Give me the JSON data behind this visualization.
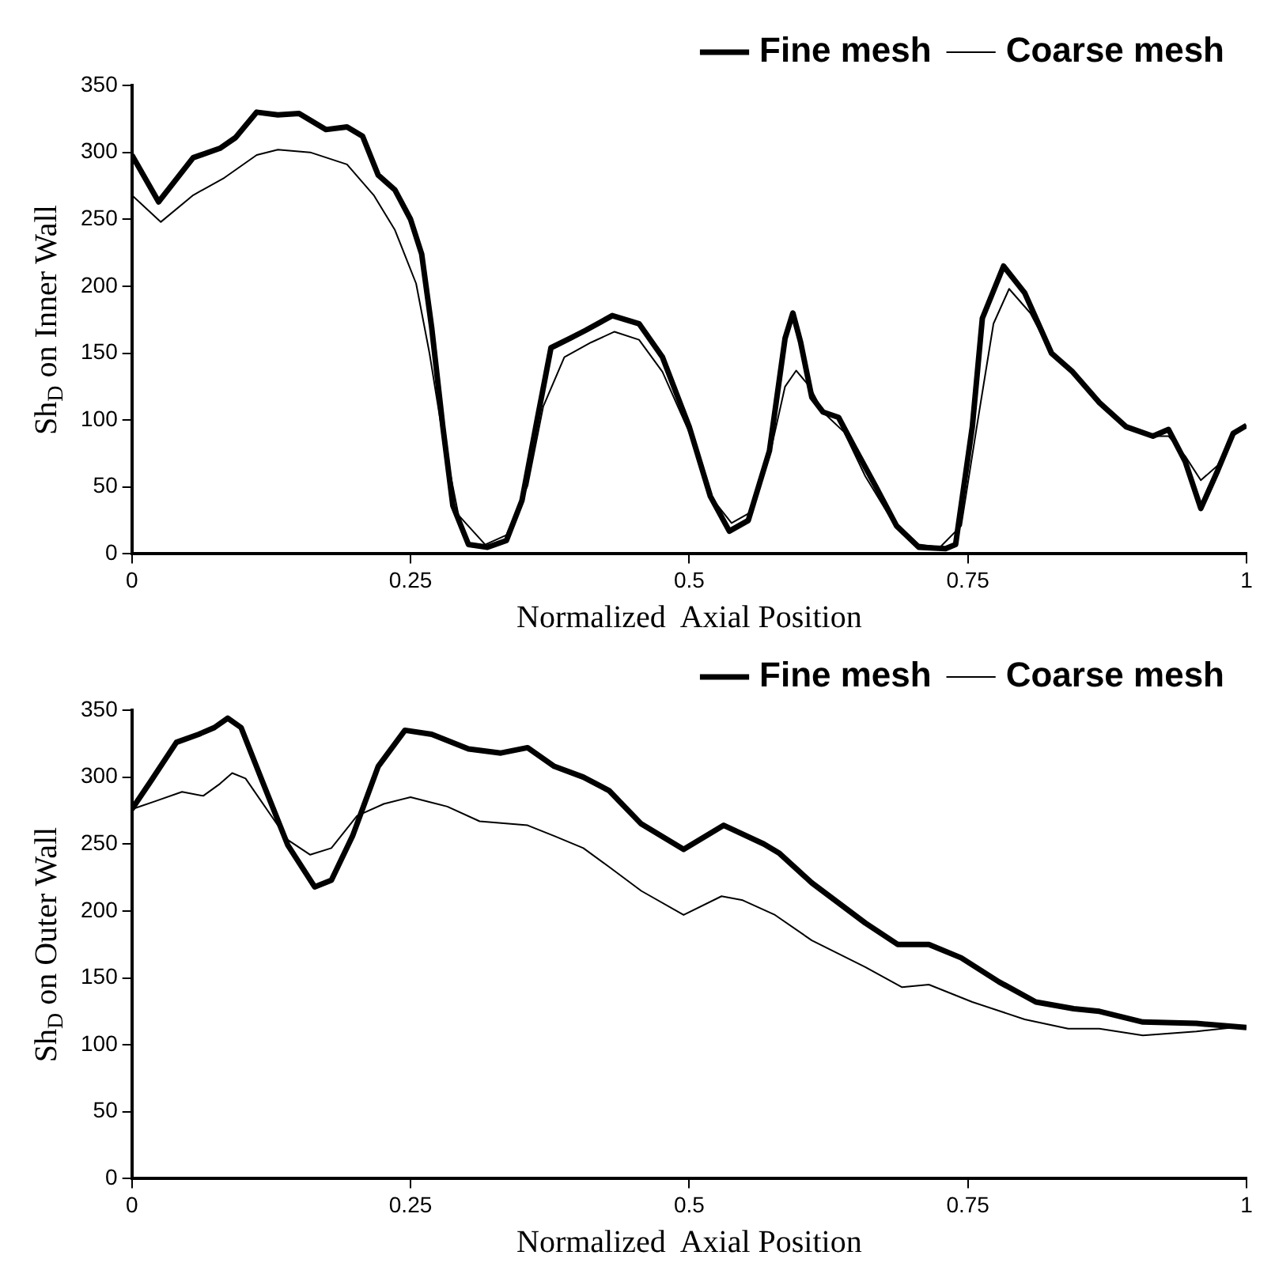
{
  "chart_data": [
    {
      "type": "line",
      "xlabel": "Normalized  Axial Position",
      "ylabel": "Sh$_{D}$ on Inner Wall",
      "xlim": [
        0,
        1
      ],
      "xticks": [
        0,
        0.25,
        0.5,
        0.75,
        1
      ],
      "ylim": [
        0,
        350
      ],
      "yticks": [
        0,
        50,
        100,
        150,
        200,
        250,
        300,
        350
      ],
      "grid": false,
      "legend": "top right",
      "marker": "none",
      "series": [
        {
          "name": "Fine mesh",
          "color": "#000000",
          "x": [
            0,
            0.024,
            0.055,
            0.079,
            0.093,
            0.112,
            0.131,
            0.15,
            0.174,
            0.193,
            0.207,
            0.221,
            0.236,
            0.25,
            0.26,
            0.269,
            0.279,
            0.288,
            0.302,
            0.319,
            0.336,
            0.35,
            0.364,
            0.376,
            0.393,
            0.407,
            0.431,
            0.455,
            0.476,
            0.5,
            0.519,
            0.536,
            0.553,
            0.572,
            0.586,
            0.593,
            0.6,
            0.61,
            0.62,
            0.634,
            0.648,
            0.667,
            0.686,
            0.706,
            0.73,
            0.739,
            0.754,
            0.763,
            0.782,
            0.801,
            0.825,
            0.844,
            0.868,
            0.892,
            0.916,
            0.93,
            0.945,
            0.959,
            0.974,
            0.988,
            1
          ],
          "values": [
            298,
            263,
            296,
            303,
            311,
            330,
            328,
            329,
            317,
            319,
            312,
            283,
            272,
            250,
            224,
            169,
            95,
            36,
            7,
            5,
            10,
            40,
            102,
            154,
            161,
            167,
            178,
            172,
            147,
            95,
            43,
            17,
            25,
            77,
            161,
            180,
            158,
            117,
            106,
            102,
            80,
            51,
            21,
            5,
            4,
            7,
            95,
            176,
            215,
            195,
            150,
            136,
            113,
            95,
            88,
            93,
            69,
            34,
            62,
            90,
            96
          ]
        },
        {
          "name": "Coarse mesh",
          "color": "#000000",
          "x": [
            0,
            0.026,
            0.055,
            0.083,
            0.112,
            0.131,
            0.16,
            0.193,
            0.217,
            0.236,
            0.255,
            0.267,
            0.279,
            0.293,
            0.317,
            0.336,
            0.355,
            0.369,
            0.388,
            0.412,
            0.433,
            0.455,
            0.476,
            0.5,
            0.519,
            0.538,
            0.555,
            0.572,
            0.586,
            0.596,
            0.608,
            0.62,
            0.639,
            0.658,
            0.682,
            0.706,
            0.725,
            0.744,
            0.758,
            0.773,
            0.787,
            0.806,
            0.825,
            0.844,
            0.868,
            0.892,
            0.916,
            0.93,
            0.945,
            0.959,
            0.974,
            0.988,
            1
          ],
          "values": [
            268,
            248,
            268,
            281,
            298,
            302,
            300,
            291,
            268,
            242,
            202,
            150,
            88,
            29,
            7,
            14,
            51,
            110,
            147,
            158,
            166,
            160,
            136,
            91,
            43,
            23,
            31,
            73,
            125,
            137,
            125,
            106,
            91,
            58,
            25,
            7,
            5,
            21,
            95,
            172,
            198,
            180,
            150,
            136,
            113,
            95,
            88,
            88,
            73,
            55,
            66,
            90,
            96
          ]
        }
      ]
    },
    {
      "type": "line",
      "xlabel": "Normalized  Axial Position",
      "ylabel": "Sh$_{D}$ on Outer Wall",
      "xlim": [
        0,
        1
      ],
      "xticks": [
        0,
        0.25,
        0.5,
        0.75,
        1
      ],
      "ylim": [
        0,
        350
      ],
      "yticks": [
        0,
        50,
        100,
        150,
        200,
        250,
        300,
        350
      ],
      "grid": false,
      "legend": "top right",
      "marker": "none",
      "series": [
        {
          "name": "Fine mesh",
          "color": "#000000",
          "x": [
            0,
            0.017,
            0.04,
            0.06,
            0.074,
            0.086,
            0.098,
            0.117,
            0.14,
            0.164,
            0.179,
            0.198,
            0.221,
            0.245,
            0.269,
            0.302,
            0.331,
            0.355,
            0.379,
            0.405,
            0.428,
            0.457,
            0.495,
            0.531,
            0.567,
            0.581,
            0.61,
            0.658,
            0.687,
            0.715,
            0.744,
            0.778,
            0.811,
            0.845,
            0.868,
            0.907,
            0.955,
            1
          ],
          "values": [
            276,
            297,
            326,
            332,
            337,
            344,
            337,
            297,
            249,
            218,
            223,
            256,
            308,
            335,
            332,
            321,
            318,
            322,
            308,
            300,
            290,
            265,
            246,
            264,
            250,
            243,
            221,
            191,
            175,
            175,
            165,
            147,
            132,
            127,
            125,
            117,
            116,
            113
          ]
        },
        {
          "name": "Coarse mesh",
          "color": "#000000",
          "x": [
            0,
            0.021,
            0.045,
            0.064,
            0.079,
            0.09,
            0.102,
            0.121,
            0.14,
            0.16,
            0.179,
            0.202,
            0.226,
            0.25,
            0.283,
            0.312,
            0.355,
            0.379,
            0.405,
            0.428,
            0.457,
            0.495,
            0.529,
            0.548,
            0.577,
            0.61,
            0.658,
            0.691,
            0.715,
            0.754,
            0.801,
            0.84,
            0.868,
            0.907,
            0.955,
            1
          ],
          "values": [
            276,
            282,
            289,
            286,
            295,
            303,
            299,
            276,
            253,
            242,
            247,
            271,
            280,
            285,
            278,
            267,
            264,
            256,
            247,
            233,
            215,
            197,
            211,
            208,
            197,
            178,
            158,
            143,
            145,
            132,
            119,
            112,
            112,
            107,
            110,
            114
          ]
        }
      ]
    }
  ]
}
